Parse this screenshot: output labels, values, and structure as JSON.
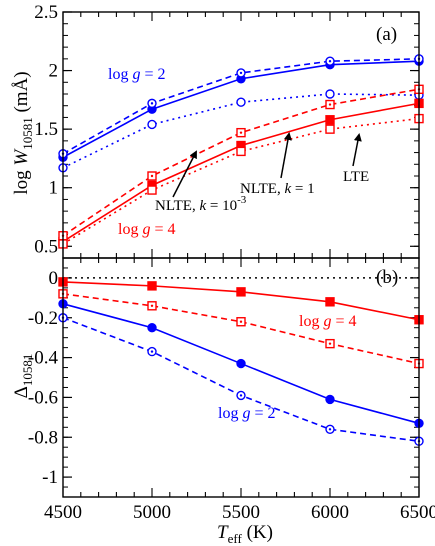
{
  "chart_data": [
    {
      "panel_label": "(a)",
      "type": "line",
      "ylabel": "log W10581 (mÅ)",
      "ylim": [
        0.4,
        2.5
      ],
      "yticks": [
        "0.5",
        "1",
        "1.5",
        "2",
        "2.5"
      ],
      "x": [
        4500,
        5000,
        5500,
        6000,
        6500
      ],
      "series": [
        {
          "group": "logg2",
          "style": "solid",
          "marker": "filled-circle",
          "color": "#0000ff",
          "values": [
            1.26,
            1.67,
            1.93,
            2.05,
            2.08
          ]
        },
        {
          "group": "logg2",
          "style": "dashed",
          "marker": "dot-circle",
          "color": "#0000ff",
          "values": [
            1.29,
            1.72,
            1.98,
            2.08,
            2.1
          ]
        },
        {
          "group": "logg2",
          "style": "dotted",
          "marker": "open-circle",
          "color": "#0000ff",
          "values": [
            1.17,
            1.54,
            1.73,
            1.8,
            1.79
          ]
        },
        {
          "group": "logg4",
          "style": "solid",
          "marker": "filled-square",
          "color": "#ff0000",
          "values": [
            0.54,
            1.02,
            1.36,
            1.58,
            1.72
          ]
        },
        {
          "group": "logg4",
          "style": "dashed",
          "marker": "dot-square",
          "color": "#ff0000",
          "values": [
            0.59,
            1.1,
            1.47,
            1.71,
            1.84
          ]
        },
        {
          "group": "logg4",
          "style": "dotted",
          "marker": "open-square",
          "color": "#ff0000",
          "values": [
            0.52,
            0.98,
            1.31,
            1.5,
            1.59
          ]
        }
      ],
      "annotations": {
        "logg2": "log g = 2",
        "logg4": "log g = 4",
        "nlte_small_k": "NLTE, k = 10^-3",
        "nlte_k1": "NLTE, k = 1",
        "lte": "LTE"
      }
    },
    {
      "panel_label": "(b)",
      "type": "line",
      "ylabel": "Δ10581",
      "ylim": [
        -1.1,
        0.1
      ],
      "yticks": [
        "0",
        "-0.2",
        "-0.4",
        "-0.6",
        "-0.8",
        "-1"
      ],
      "xlabel": "Teff (K)",
      "xlim": [
        4500,
        6500
      ],
      "xticks": [
        "4500",
        "5000",
        "5500",
        "6000",
        "6500"
      ],
      "x": [
        4500,
        5000,
        5500,
        6000,
        6500
      ],
      "zero_line": {
        "y": 0,
        "style": "dotted",
        "color": "#000000"
      },
      "series": [
        {
          "group": "logg4",
          "style": "solid",
          "marker": "filled-square",
          "color": "#ff0000",
          "values": [
            -0.02,
            -0.04,
            -0.07,
            -0.12,
            -0.21
          ]
        },
        {
          "group": "logg4",
          "style": "dashed",
          "marker": "dot-square",
          "color": "#ff0000",
          "values": [
            -0.08,
            -0.14,
            -0.22,
            -0.33,
            -0.43
          ]
        },
        {
          "group": "logg2",
          "style": "solid",
          "marker": "filled-circle",
          "color": "#0000ff",
          "values": [
            -0.13,
            -0.25,
            -0.43,
            -0.61,
            -0.73
          ]
        },
        {
          "group": "logg2",
          "style": "dashed",
          "marker": "dot-circle",
          "color": "#0000ff",
          "values": [
            -0.2,
            -0.37,
            -0.59,
            -0.76,
            -0.82
          ]
        }
      ],
      "annotations": {
        "logg4": "log g = 4",
        "logg2": "log g = 2"
      }
    }
  ],
  "colors": {
    "red": "#ff0000",
    "blue": "#0000ff",
    "axis": "#000000"
  }
}
